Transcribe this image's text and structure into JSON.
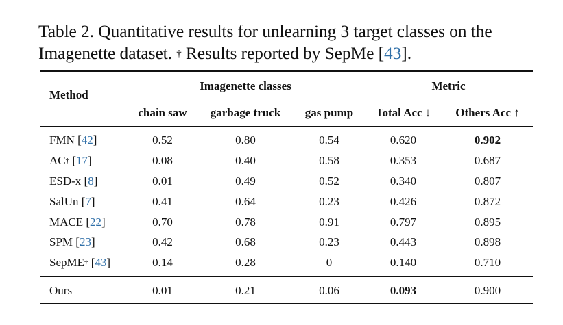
{
  "caption": {
    "part1": "Table 2. Quantitative results for unlearning 3 target classes on the Imagenette dataset.",
    "dagger": "†",
    "part2": "Results reported by SepMe [",
    "ref": "43",
    "part3": "]."
  },
  "table": {
    "group_headers": {
      "method": "Method",
      "classes": "Imagenette classes",
      "metric": "Metric"
    },
    "columns": [
      "chain saw",
      "garbage truck",
      "gas pump",
      "Total Acc ↓",
      "Others Acc ↑"
    ],
    "rows": [
      {
        "method": "FMN",
        "dagger": "",
        "ref": "42",
        "values": [
          "0.52",
          "0.80",
          "0.54",
          "0.620",
          "0.902"
        ]
      },
      {
        "method": "AC",
        "dagger": "†",
        "ref": "17",
        "values": [
          "0.08",
          "0.40",
          "0.58",
          "0.353",
          "0.687"
        ]
      },
      {
        "method": "ESD-x",
        "dagger": "",
        "ref": "8",
        "values": [
          "0.01",
          "0.49",
          "0.52",
          "0.340",
          "0.807"
        ]
      },
      {
        "method": "SalUn",
        "dagger": "",
        "ref": "7",
        "values": [
          "0.41",
          "0.64",
          "0.23",
          "0.426",
          "0.872"
        ]
      },
      {
        "method": "MACE",
        "dagger": "",
        "ref": "22",
        "values": [
          "0.70",
          "0.78",
          "0.91",
          "0.797",
          "0.895"
        ]
      },
      {
        "method": "SPM",
        "dagger": "",
        "ref": "23",
        "values": [
          "0.42",
          "0.68",
          "0.23",
          "0.443",
          "0.898"
        ]
      },
      {
        "method": "SepME",
        "dagger": "†",
        "ref": "43",
        "values": [
          "0.14",
          "0.28",
          "0",
          "0.140",
          "0.710"
        ]
      }
    ],
    "ours": {
      "method": "Ours",
      "values": [
        "0.01",
        "0.21",
        "0.06",
        "0.093",
        "0.900"
      ]
    },
    "bold_cells": [
      "FMN.Others Acc",
      "Ours.Total Acc"
    ]
  }
}
